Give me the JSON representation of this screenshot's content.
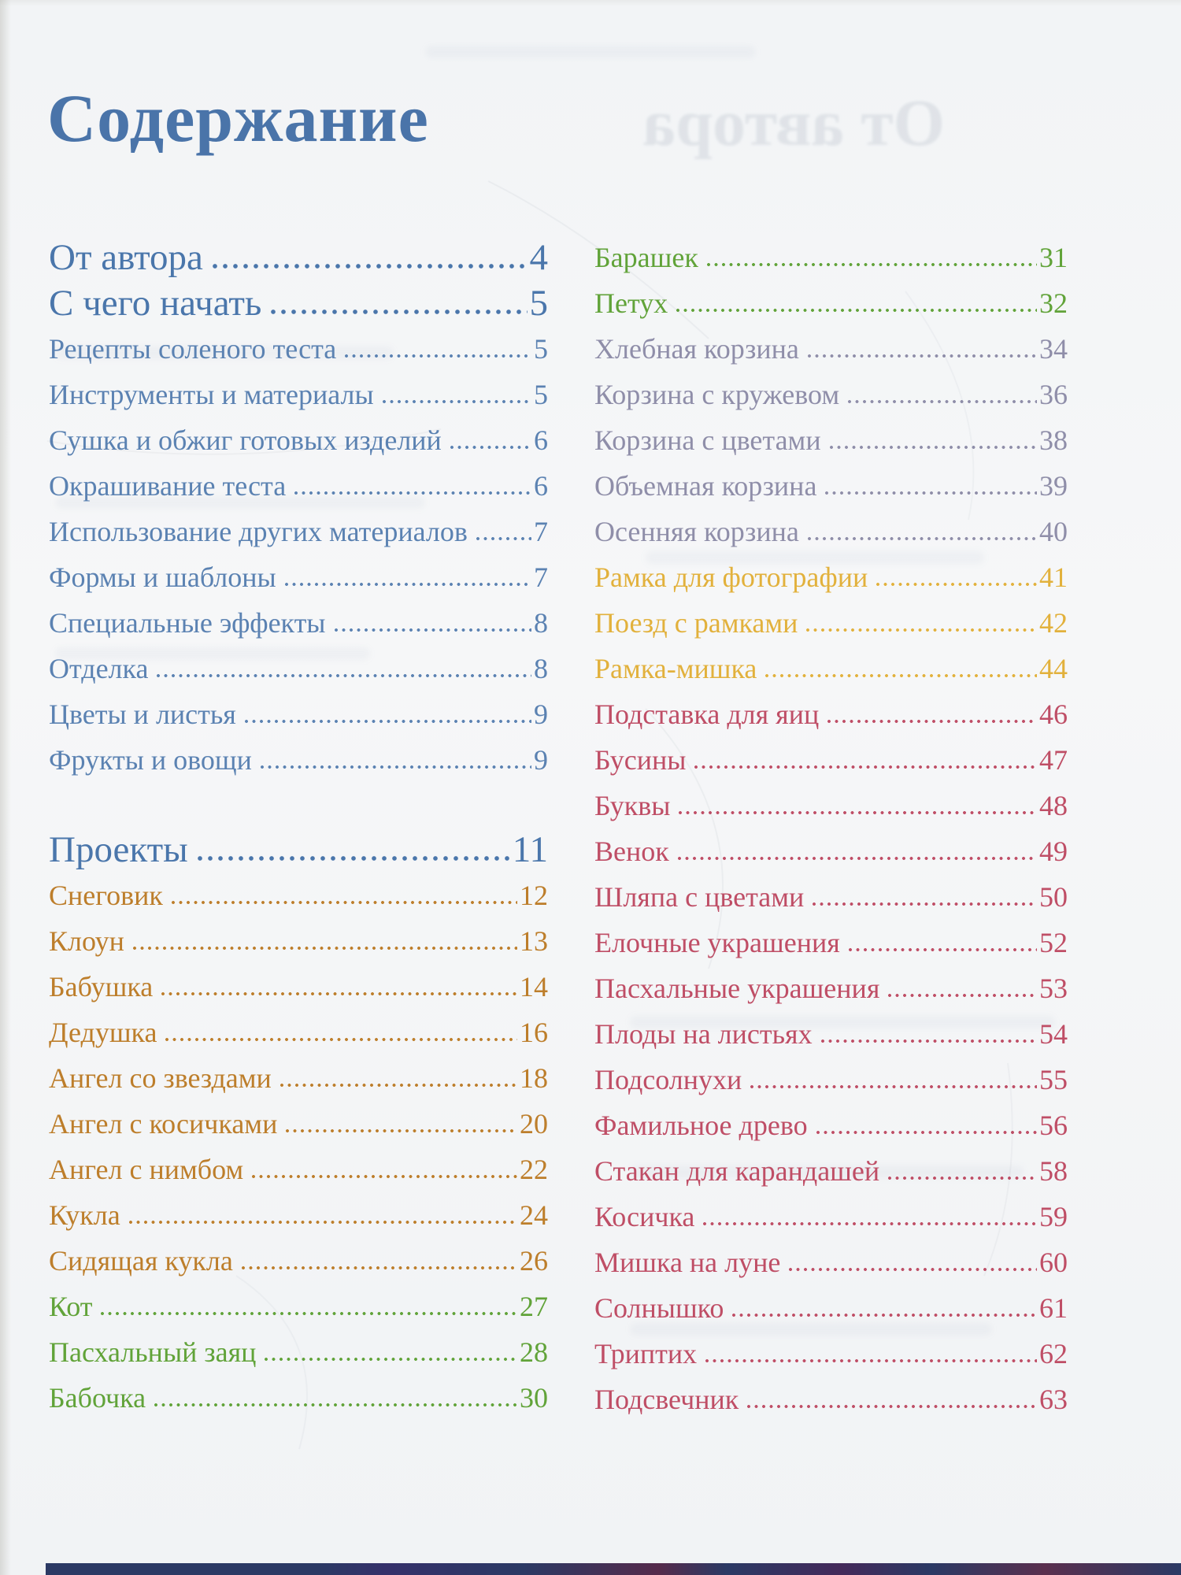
{
  "page": {
    "title": "Содержание",
    "bleed_through_text": "От автора"
  },
  "palette": {
    "titleblue": "#4a74a9",
    "bluemain": "#4a76ab",
    "blue": "#5b82b2",
    "orange": "#bd7e2b",
    "green": "#61a339",
    "slate": "#8f8ea9",
    "gold": "#e2b13c",
    "rose": "#bf4e66",
    "paper": "#f3f5f6",
    "bottom_strip": "#2b3964"
  },
  "toc": {
    "left": [
      {
        "label": "От автора",
        "page": "4",
        "style": "main",
        "color": "bluemain"
      },
      {
        "label": "С чего начать",
        "page": "5",
        "style": "main",
        "color": "bluemain"
      },
      {
        "label": "Рецепты соленого теста",
        "page": "5",
        "style": "sub",
        "color": "blue"
      },
      {
        "label": "Инструменты и материалы",
        "page": "5",
        "style": "sub",
        "color": "blue"
      },
      {
        "label": "Сушка и обжиг готовых изделий",
        "page": "6",
        "style": "sub",
        "color": "blue"
      },
      {
        "label": "Окрашивание теста",
        "page": "6",
        "style": "sub",
        "color": "blue"
      },
      {
        "label": "Использование других материалов",
        "page": "7",
        "style": "sub",
        "color": "blue"
      },
      {
        "label": "Формы и шаблоны",
        "page": "7",
        "style": "sub",
        "color": "blue"
      },
      {
        "label": "Специальные эффекты",
        "page": "8",
        "style": "sub",
        "color": "blue"
      },
      {
        "label": "Отделка",
        "page": "8",
        "style": "sub",
        "color": "blue"
      },
      {
        "label": "Цветы и листья",
        "page": "9",
        "style": "sub",
        "color": "blue"
      },
      {
        "label": "Фрукты и овощи",
        "page": "9",
        "style": "sub",
        "color": "blue"
      },
      {
        "label": "Проекты",
        "page": "11",
        "style": "main",
        "gap": true,
        "color": "bluemain"
      },
      {
        "label": "Снеговик",
        "page": "12",
        "style": "sub",
        "color": "orange"
      },
      {
        "label": "Клоун",
        "page": "13",
        "style": "sub",
        "color": "orange"
      },
      {
        "label": "Бабушка",
        "page": "14",
        "style": "sub",
        "color": "orange"
      },
      {
        "label": "Дедушка",
        "page": "16",
        "style": "sub",
        "color": "orange"
      },
      {
        "label": "Ангел со звездами",
        "page": "18",
        "style": "sub",
        "color": "orange"
      },
      {
        "label": "Ангел с косичками",
        "page": "20",
        "style": "sub",
        "color": "orange"
      },
      {
        "label": "Ангел с нимбом",
        "page": "22",
        "style": "sub",
        "color": "orange"
      },
      {
        "label": "Кукла",
        "page": "24",
        "style": "sub",
        "color": "orange"
      },
      {
        "label": "Сидящая кукла",
        "page": "26",
        "style": "sub",
        "color": "orange"
      },
      {
        "label": "Кот",
        "page": "27",
        "style": "sub",
        "color": "green"
      },
      {
        "label": "Пасхальный заяц",
        "page": "28",
        "style": "sub",
        "color": "green"
      },
      {
        "label": "Бабочка",
        "page": "30",
        "style": "sub",
        "color": "green"
      }
    ],
    "right": [
      {
        "label": "Барашек",
        "page": "31",
        "style": "sub",
        "color": "green"
      },
      {
        "label": "Петух",
        "page": "32",
        "style": "sub",
        "color": "green"
      },
      {
        "label": "Хлебная корзина",
        "page": "34",
        "style": "sub",
        "color": "slate"
      },
      {
        "label": "Корзина с кружевом",
        "page": "36",
        "style": "sub",
        "color": "slate"
      },
      {
        "label": "Корзина с цветами",
        "page": "38",
        "style": "sub",
        "color": "slate"
      },
      {
        "label": "Объемная корзина",
        "page": "39",
        "style": "sub",
        "color": "slate"
      },
      {
        "label": "Осенняя корзина",
        "page": "40",
        "style": "sub",
        "color": "slate"
      },
      {
        "label": "Рамка для фотографии",
        "page": "41",
        "style": "sub",
        "color": "gold"
      },
      {
        "label": "Поезд с рамками",
        "page": "42",
        "style": "sub",
        "color": "gold"
      },
      {
        "label": "Рамка-мишка",
        "page": "44",
        "style": "sub",
        "color": "gold"
      },
      {
        "label": "Подставка для яиц",
        "page": "46",
        "style": "sub",
        "color": "rose"
      },
      {
        "label": "Бусины",
        "page": "47",
        "style": "sub",
        "color": "rose"
      },
      {
        "label": "Буквы",
        "page": "48",
        "style": "sub",
        "color": "rose"
      },
      {
        "label": "Венок",
        "page": "49",
        "style": "sub",
        "color": "rose"
      },
      {
        "label": "Шляпа с цветами",
        "page": "50",
        "style": "sub",
        "color": "rose"
      },
      {
        "label": "Елочные украшения",
        "page": "52",
        "style": "sub",
        "color": "rose"
      },
      {
        "label": "Пасхальные украшения",
        "page": "53",
        "style": "sub",
        "color": "rose"
      },
      {
        "label": "Плоды на листьях",
        "page": "54",
        "style": "sub",
        "color": "rose"
      },
      {
        "label": "Подсолнухи",
        "page": "55",
        "style": "sub",
        "color": "rose"
      },
      {
        "label": "Фамильное древо",
        "page": "56",
        "style": "sub",
        "color": "rose"
      },
      {
        "label": "Стакан для карандашей",
        "page": "58",
        "style": "sub",
        "color": "rose"
      },
      {
        "label": "Косичка",
        "page": "59",
        "style": "sub",
        "color": "rose"
      },
      {
        "label": "Мишка на луне",
        "page": "60",
        "style": "sub",
        "color": "rose"
      },
      {
        "label": "Солнышко",
        "page": "61",
        "style": "sub",
        "color": "rose"
      },
      {
        "label": "Триптих",
        "page": "62",
        "style": "sub",
        "color": "rose"
      },
      {
        "label": "Подсвечник",
        "page": "63",
        "style": "sub",
        "color": "rose"
      }
    ]
  }
}
